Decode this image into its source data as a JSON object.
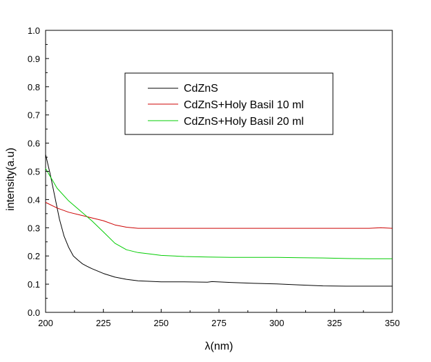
{
  "chart_data": {
    "type": "line",
    "title": "",
    "xlabel": "λ(nm)",
    "ylabel": "intensity(a.u)",
    "xlim": [
      200,
      350
    ],
    "ylim": [
      0.0,
      1.0
    ],
    "xticks": [
      200,
      225,
      250,
      275,
      300,
      325,
      350
    ],
    "yticks": [
      0.0,
      0.1,
      0.2,
      0.3,
      0.4,
      0.5,
      0.6,
      0.7,
      0.8,
      0.9,
      1.0
    ],
    "xtick_labels": [
      "200",
      "225",
      "250",
      "275",
      "300",
      "325",
      "350"
    ],
    "ytick_labels": [
      "0.0",
      "0.1",
      "0.2",
      "0.3",
      "0.4",
      "0.5",
      "0.6",
      "0.7",
      "0.8",
      "0.9",
      "1.0"
    ],
    "grid": false,
    "legend_position": "upper-center",
    "series": [
      {
        "name": "CdZnS",
        "color": "#000000",
        "x": [
          200,
          202,
          204,
          206,
          208,
          210,
          212,
          214,
          216,
          218,
          220,
          225,
          230,
          235,
          240,
          245,
          250,
          260,
          270,
          272,
          280,
          290,
          300,
          310,
          320,
          330,
          340,
          350
        ],
        "y": [
          0.56,
          0.49,
          0.41,
          0.33,
          0.27,
          0.23,
          0.2,
          0.185,
          0.172,
          0.163,
          0.155,
          0.138,
          0.125,
          0.117,
          0.112,
          0.11,
          0.108,
          0.108,
          0.107,
          0.109,
          0.106,
          0.103,
          0.101,
          0.097,
          0.094,
          0.093,
          0.093,
          0.093
        ]
      },
      {
        "name": "CdZnS+Holy Basil 10 ml",
        "color": "#cc0000",
        "x": [
          200,
          205,
          210,
          215,
          220,
          225,
          230,
          235,
          240,
          250,
          260,
          270,
          280,
          300,
          320,
          340,
          345,
          350
        ],
        "y": [
          0.39,
          0.37,
          0.355,
          0.345,
          0.335,
          0.325,
          0.31,
          0.302,
          0.298,
          0.298,
          0.298,
          0.298,
          0.298,
          0.298,
          0.298,
          0.298,
          0.3,
          0.298
        ]
      },
      {
        "name": "CdZnS+Holy Basil 20 ml",
        "color": "#00cc00",
        "x": [
          200,
          205,
          210,
          215,
          220,
          225,
          230,
          235,
          240,
          245,
          250,
          260,
          270,
          280,
          290,
          300,
          310,
          320,
          330,
          340,
          350
        ],
        "y": [
          0.51,
          0.44,
          0.395,
          0.36,
          0.325,
          0.285,
          0.245,
          0.222,
          0.212,
          0.207,
          0.202,
          0.198,
          0.196,
          0.195,
          0.195,
          0.195,
          0.194,
          0.193,
          0.191,
          0.19,
          0.19
        ]
      }
    ]
  }
}
